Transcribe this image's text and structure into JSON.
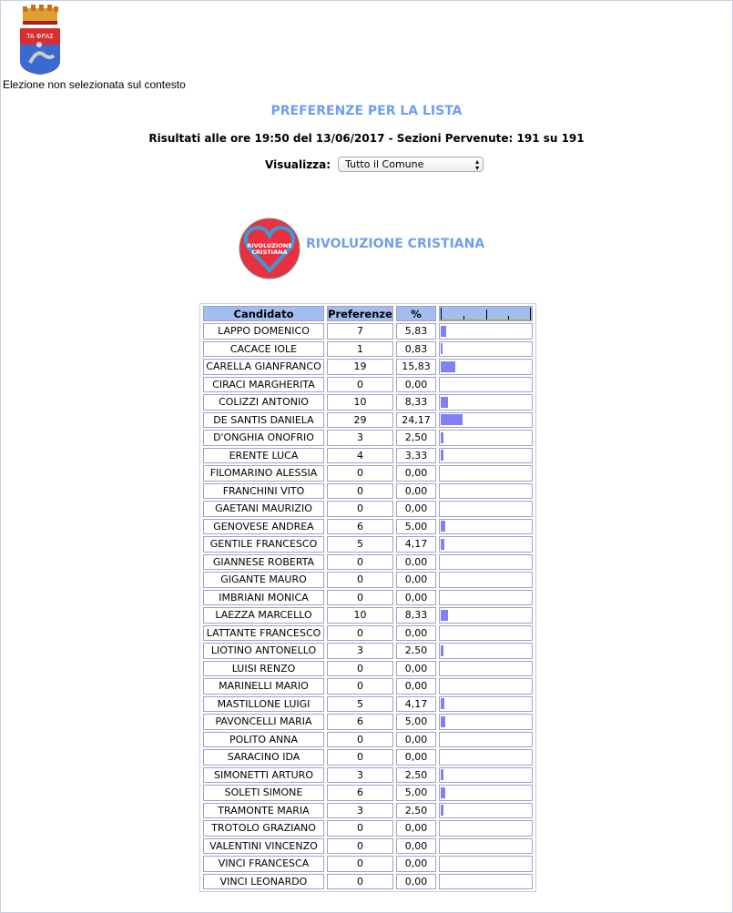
{
  "header": {
    "crest_lettering": "TA ΦΡΑΣ",
    "context_message": "Elezione non selezionata sul contesto",
    "title": "PREFERENZE PER LA LISTA",
    "subtitle": "Risultati alle ore 19:50 del 13/06/2017 - Sezioni Pervenute: 191 su 191",
    "visualizza_label": "Visualizza:",
    "visualizza_value": "Tutto il Comune"
  },
  "party": {
    "name": "RIVOLUZIONE CRISTIANA",
    "logo_lettering": "RIVOLUZIONE CRISTIANA"
  },
  "colors": {
    "accent": "#6f9ef0",
    "header_bg": "#a2bdf0",
    "bar": "#8080f8"
  },
  "table": {
    "headers": [
      "Candidato",
      "Preferenze",
      "%"
    ],
    "rows": [
      [
        "LAPPO DOMENICO",
        "7",
        "5,83"
      ],
      [
        "CACACE IOLE",
        "1",
        "0,83"
      ],
      [
        "CARELLA GIANFRANCO",
        "19",
        "15,83"
      ],
      [
        "CIRACI MARGHERITA",
        "0",
        "0,00"
      ],
      [
        "COLIZZI ANTONIO",
        "10",
        "8,33"
      ],
      [
        "DE SANTIS DANIELA",
        "29",
        "24,17"
      ],
      [
        "D'ONGHIA ONOFRIO",
        "3",
        "2,50"
      ],
      [
        "ERENTE LUCA",
        "4",
        "3,33"
      ],
      [
        "FILOMARINO ALESSIA",
        "0",
        "0,00"
      ],
      [
        "FRANCHINI VITO",
        "0",
        "0,00"
      ],
      [
        "GAETANI MAURIZIO",
        "0",
        "0,00"
      ],
      [
        "GENOVESE ANDREA",
        "6",
        "5,00"
      ],
      [
        "GENTILE FRANCESCO",
        "5",
        "4,17"
      ],
      [
        "GIANNESE ROBERTA",
        "0",
        "0,00"
      ],
      [
        "GIGANTE MAURO",
        "0",
        "0,00"
      ],
      [
        "IMBRIANI MONICA",
        "0",
        "0,00"
      ],
      [
        "LAEZZA MARCELLO",
        "10",
        "8,33"
      ],
      [
        "LATTANTE FRANCESCO",
        "0",
        "0,00"
      ],
      [
        "LIOTINO ANTONELLO",
        "3",
        "2,50"
      ],
      [
        "LUISI RENZO",
        "0",
        "0,00"
      ],
      [
        "MARINELLI MARIO",
        "0",
        "0,00"
      ],
      [
        "MASTILLONE LUIGI",
        "5",
        "4,17"
      ],
      [
        "PAVONCELLI MARIA",
        "6",
        "5,00"
      ],
      [
        "POLITO ANNA",
        "0",
        "0,00"
      ],
      [
        "SARACINO IDA",
        "0",
        "0,00"
      ],
      [
        "SIMONETTI ARTURO",
        "3",
        "2,50"
      ],
      [
        "SOLETI SIMONE",
        "6",
        "5,00"
      ],
      [
        "TRAMONTE MARIA",
        "3",
        "2,50"
      ],
      [
        "TROTOLO GRAZIANO",
        "0",
        "0,00"
      ],
      [
        "VALENTINI VINCENZO",
        "0",
        "0,00"
      ],
      [
        "VINCI FRANCESCA",
        "0",
        "0,00"
      ],
      [
        "VINCI LEONARDO",
        "0",
        "0,00"
      ]
    ]
  }
}
